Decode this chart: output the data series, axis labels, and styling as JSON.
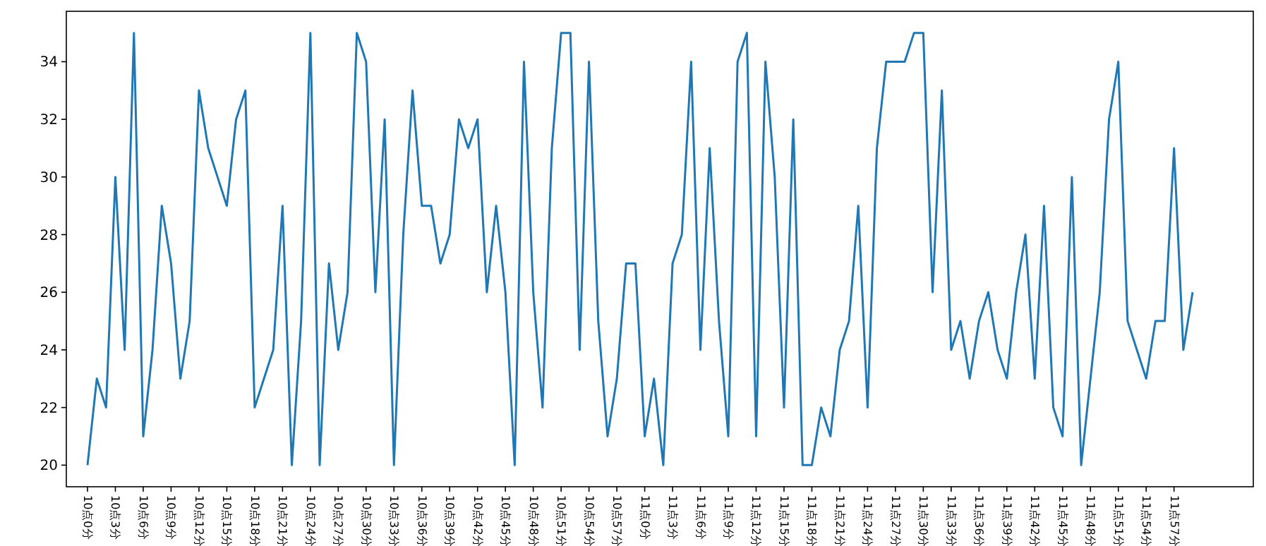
{
  "chart_data": {
    "type": "line",
    "categories": [
      "10点0分",
      null,
      null,
      "10点3分",
      null,
      null,
      "10点6分",
      null,
      null,
      "10点9分",
      null,
      null,
      "10点12分",
      null,
      null,
      "10点15分",
      null,
      null,
      "10点18分",
      null,
      null,
      "10点21分",
      null,
      null,
      "10点24分",
      null,
      null,
      "10点27分",
      null,
      null,
      "10点30分",
      null,
      null,
      "10点33分",
      null,
      null,
      "10点36分",
      null,
      null,
      "10点39分",
      null,
      null,
      "10点42分",
      null,
      null,
      "10点45分",
      null,
      null,
      "10点48分",
      null,
      null,
      "10点51分",
      null,
      null,
      "10点54分",
      null,
      null,
      "10点57分",
      null,
      null,
      "11点0分",
      null,
      null,
      "11点3分",
      null,
      null,
      "11点6分",
      null,
      null,
      "11点9分",
      null,
      null,
      "11点12分",
      null,
      null,
      "11点15分",
      null,
      null,
      "11点18分",
      null,
      null,
      "11点21分",
      null,
      null,
      "11点24分",
      null,
      null,
      "11点27分",
      null,
      null,
      "11点30分",
      null,
      null,
      "11点33分",
      null,
      null,
      "11点36分",
      null,
      null,
      "11点39分",
      null,
      null,
      "11点42分",
      null,
      null,
      "11点45分",
      null,
      null,
      "11点48分",
      null,
      null,
      "11点51分",
      null,
      null,
      "11点54分",
      null,
      null,
      "11点57分",
      null,
      null
    ],
    "series": [
      {
        "color": "#1f77b4",
        "values": [
          20,
          23,
          22,
          30,
          24,
          35,
          21,
          24,
          29,
          27,
          23,
          25,
          33,
          31,
          30,
          29,
          32,
          33,
          22,
          23,
          24,
          29,
          20,
          25,
          35,
          20,
          27,
          24,
          26,
          35,
          34,
          26,
          32,
          20,
          28,
          33,
          29,
          29,
          27,
          28,
          32,
          31,
          32,
          26,
          29,
          26,
          20,
          34,
          26,
          22,
          31,
          35,
          35,
          24,
          34,
          25,
          21,
          23,
          27,
          27,
          21,
          23,
          20,
          27,
          28,
          34,
          24,
          31,
          25,
          21,
          34,
          35,
          21,
          34,
          30,
          22,
          32,
          20,
          20,
          22,
          21,
          24,
          25,
          29,
          22,
          31,
          34,
          34,
          34,
          35,
          35,
          26,
          33,
          24,
          25,
          23,
          25,
          26,
          24,
          23,
          26,
          28,
          23,
          29,
          22,
          21,
          30,
          20,
          23,
          26,
          32,
          34,
          25,
          24,
          23,
          25,
          25,
          31,
          24,
          26
        ]
      }
    ],
    "ylim": [
      19.25,
      35.75
    ],
    "yticks": [
      20,
      22,
      24,
      26,
      28,
      30,
      32,
      34
    ],
    "grid": false
  }
}
